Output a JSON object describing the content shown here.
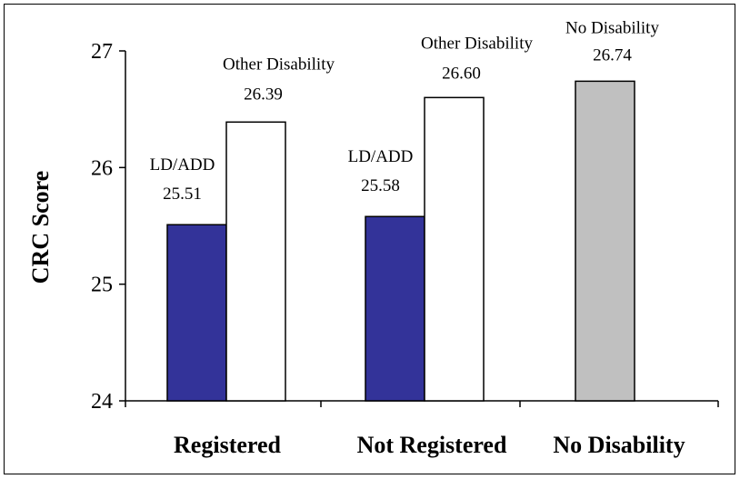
{
  "chart_data": {
    "type": "bar",
    "title": "",
    "ylabel": "CRC Score",
    "xlabel": "",
    "ylim": [
      24,
      27
    ],
    "yticks": [
      "24",
      "25",
      "26",
      "27"
    ],
    "categories": [
      "Registered",
      "Not Registered",
      "No Disability"
    ],
    "bars": [
      {
        "category": "Registered",
        "series": "LD/ADD",
        "value": 25.51,
        "value_label": "25.51",
        "label": "LD/ADD",
        "color": "#333399"
      },
      {
        "category": "Registered",
        "series": "Other Disability",
        "value": 26.39,
        "value_label": "26.39",
        "label": "Other Disability",
        "color": "#ffffff"
      },
      {
        "category": "Not Registered",
        "series": "LD/ADD",
        "value": 25.58,
        "value_label": "25.58",
        "label": "LD/ADD",
        "color": "#333399"
      },
      {
        "category": "Not Registered",
        "series": "Other Disability",
        "value": 26.6,
        "value_label": "26.60",
        "label": "Other Disability",
        "color": "#ffffff"
      },
      {
        "category": "No Disability",
        "series": "No Disability",
        "value": 26.74,
        "value_label": "26.74",
        "label": "No Disability",
        "color": "#c0c0c0"
      }
    ],
    "grid": false,
    "legend": "none"
  }
}
